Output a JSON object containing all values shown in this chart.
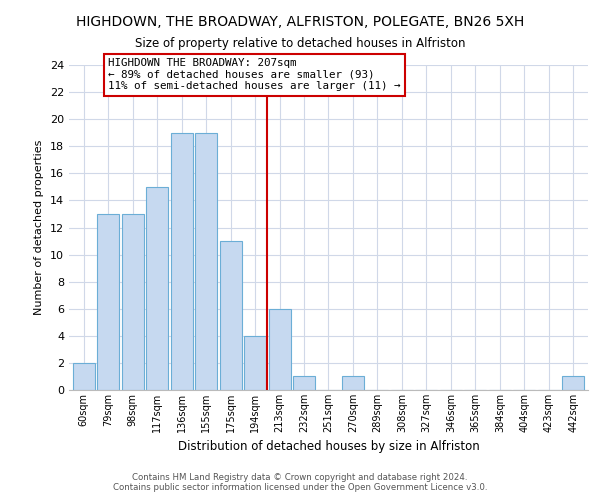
{
  "title": "HIGHDOWN, THE BROADWAY, ALFRISTON, POLEGATE, BN26 5XH",
  "subtitle": "Size of property relative to detached houses in Alfriston",
  "xlabel": "Distribution of detached houses by size in Alfriston",
  "ylabel": "Number of detached properties",
  "bar_labels": [
    "60sqm",
    "79sqm",
    "98sqm",
    "117sqm",
    "136sqm",
    "155sqm",
    "175sqm",
    "194sqm",
    "213sqm",
    "232sqm",
    "251sqm",
    "270sqm",
    "289sqm",
    "308sqm",
    "327sqm",
    "346sqm",
    "365sqm",
    "384sqm",
    "404sqm",
    "423sqm",
    "442sqm"
  ],
  "bar_values": [
    2,
    13,
    13,
    15,
    19,
    19,
    11,
    4,
    6,
    1,
    0,
    1,
    0,
    0,
    0,
    0,
    0,
    0,
    0,
    0,
    1
  ],
  "bar_color": "#c6d9f0",
  "bar_edge_color": "#6baed6",
  "vline_color": "#cc0000",
  "annotation_text": "HIGHDOWN THE BROADWAY: 207sqm\n← 89% of detached houses are smaller (93)\n11% of semi-detached houses are larger (11) →",
  "annotation_box_edge": "#cc0000",
  "ylim": [
    0,
    24
  ],
  "yticks": [
    0,
    2,
    4,
    6,
    8,
    10,
    12,
    14,
    16,
    18,
    20,
    22,
    24
  ],
  "footer_line1": "Contains HM Land Registry data © Crown copyright and database right 2024.",
  "footer_line2": "Contains public sector information licensed under the Open Government Licence v3.0.",
  "bg_color": "#ffffff",
  "grid_color": "#d0d8e8"
}
